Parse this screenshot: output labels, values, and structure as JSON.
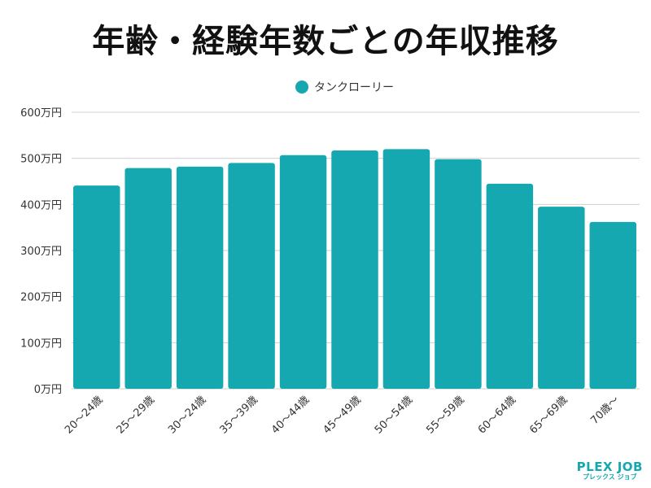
{
  "chart_data": {
    "type": "bar",
    "title": "年齢・経験年数ごとの年収推移",
    "categories": [
      "20〜24歳",
      "25〜29歳",
      "30〜24歳",
      "35〜39歳",
      "40〜44歳",
      "45〜49歳",
      "50〜54歳",
      "55〜59歳",
      "60〜64歳",
      "65〜69歳",
      "70歳〜"
    ],
    "series": [
      {
        "name": "タンクローリー",
        "values": [
          441,
          479,
          482,
          490,
          507,
          517,
          520,
          498,
          445,
          395,
          362
        ],
        "color": "#15a8b0"
      }
    ],
    "ylim": [
      0,
      600
    ],
    "yticks": [
      0,
      100,
      200,
      300,
      400,
      500,
      600
    ],
    "ytick_labels": [
      "0万円",
      "100万円",
      "200万円",
      "300万円",
      "400万円",
      "500万円",
      "600万円"
    ],
    "grid": true,
    "legend_position": "top-center"
  },
  "logo": {
    "name": "PLEX JOB",
    "sub": "プレックス ジョブ"
  }
}
